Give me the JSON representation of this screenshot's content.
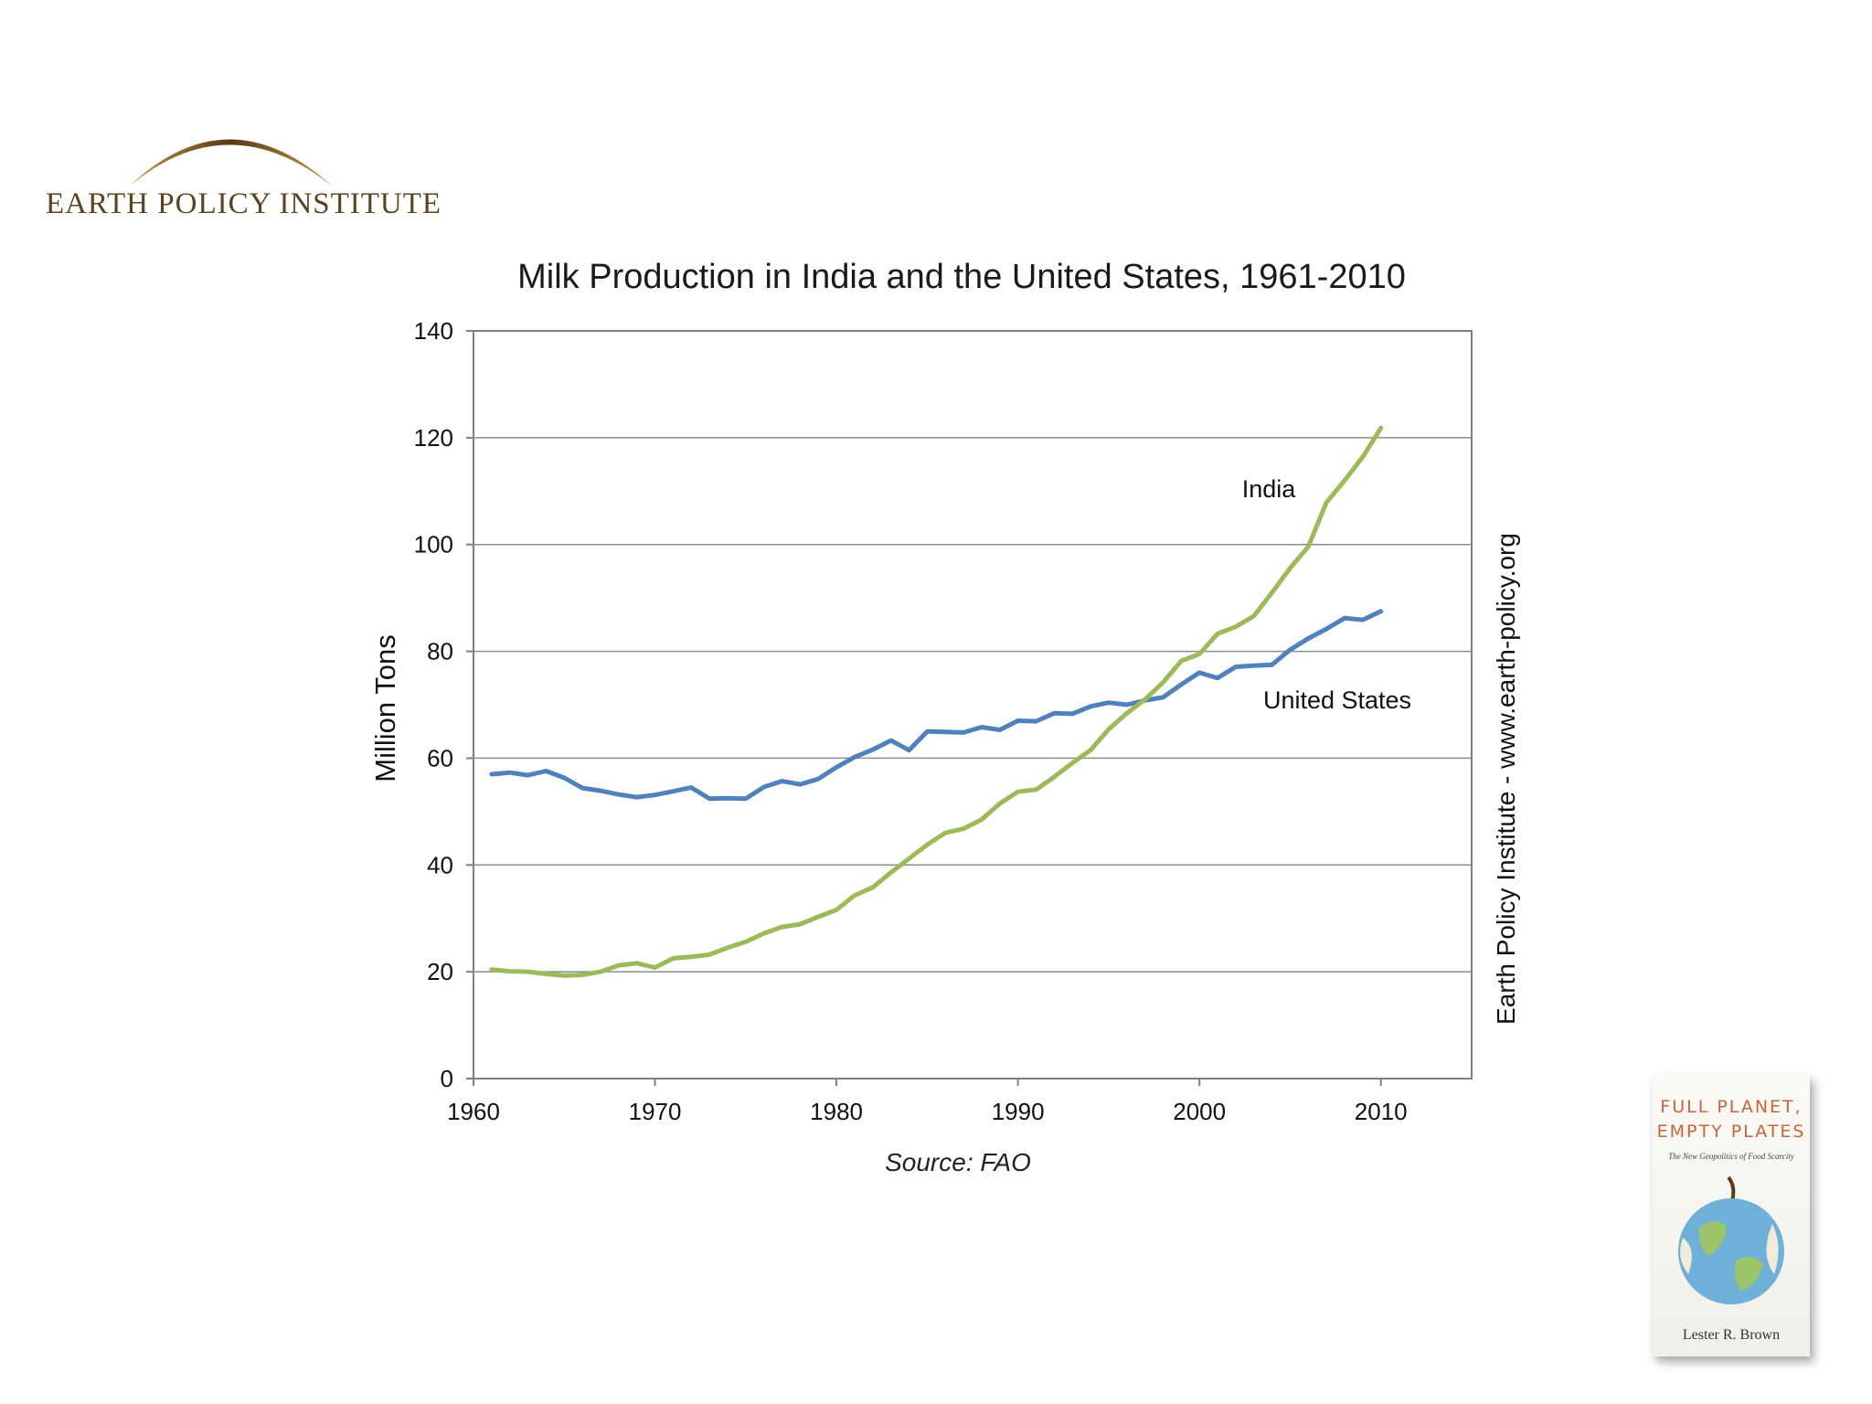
{
  "logo": {
    "text": "EARTH POLICY INSTITUTE",
    "color": "#5a4320"
  },
  "side_label": "Earth Policy Institute - www.earth-policy.org",
  "source": "Source: FAO",
  "book": {
    "title_line1": "FULL PLANET,",
    "title_line2": "EMPTY PLATES",
    "subtitle": "The New Geopolitics of Food Scarcity",
    "author": "Lester R. Brown"
  },
  "chart_data": {
    "type": "line",
    "title": "Milk Production in India and the United States, 1961-2010",
    "xlabel": "",
    "ylabel": "Million Tons",
    "xlim": [
      1960,
      2015
    ],
    "ylim": [
      0,
      140
    ],
    "x_ticks": [
      1960,
      1970,
      1980,
      1990,
      2000,
      2010
    ],
    "y_ticks": [
      0,
      20,
      40,
      60,
      80,
      100,
      120,
      140
    ],
    "grid": "horizontal",
    "x": [
      1961,
      1962,
      1963,
      1964,
      1965,
      1966,
      1967,
      1968,
      1969,
      1970,
      1971,
      1972,
      1973,
      1974,
      1975,
      1976,
      1977,
      1978,
      1979,
      1980,
      1981,
      1982,
      1983,
      1984,
      1985,
      1986,
      1987,
      1988,
      1989,
      1990,
      1991,
      1992,
      1993,
      1994,
      1995,
      1996,
      1997,
      1998,
      1999,
      2000,
      2001,
      2002,
      2003,
      2004,
      2005,
      2006,
      2007,
      2008,
      2009,
      2010
    ],
    "series": [
      {
        "name": "United States",
        "color": "#4f81bd",
        "values": [
          57.0,
          57.3,
          56.8,
          57.6,
          56.3,
          54.4,
          53.9,
          53.2,
          52.7,
          53.1,
          53.8,
          54.5,
          52.4,
          52.5,
          52.4,
          54.6,
          55.7,
          55.1,
          56.1,
          58.3,
          60.2,
          61.6,
          63.3,
          61.5,
          65.0,
          64.9,
          64.8,
          65.8,
          65.3,
          67.0,
          66.9,
          68.4,
          68.3,
          69.7,
          70.4,
          70.0,
          70.8,
          71.4,
          73.8,
          76.0,
          75.0,
          77.1,
          77.3,
          77.5,
          80.3,
          82.4,
          84.2,
          86.2,
          85.9,
          87.5
        ]
      },
      {
        "name": "India",
        "color": "#9bbb59",
        "values": [
          20.4,
          20.1,
          20.0,
          19.6,
          19.3,
          19.4,
          20.0,
          21.2,
          21.6,
          20.8,
          22.5,
          22.8,
          23.2,
          24.5,
          25.6,
          27.2,
          28.4,
          28.9,
          30.3,
          31.6,
          34.3,
          35.8,
          38.6,
          41.2,
          43.8,
          46.0,
          46.8,
          48.5,
          51.5,
          53.7,
          54.1,
          56.5,
          59.1,
          61.5,
          65.4,
          68.4,
          71.0,
          74.2,
          78.2,
          79.5,
          83.3,
          84.6,
          86.6,
          91.0,
          95.6,
          99.6,
          107.9,
          112.0,
          116.4,
          121.8
        ]
      }
    ],
    "annotations": [
      "India",
      "United States"
    ]
  }
}
